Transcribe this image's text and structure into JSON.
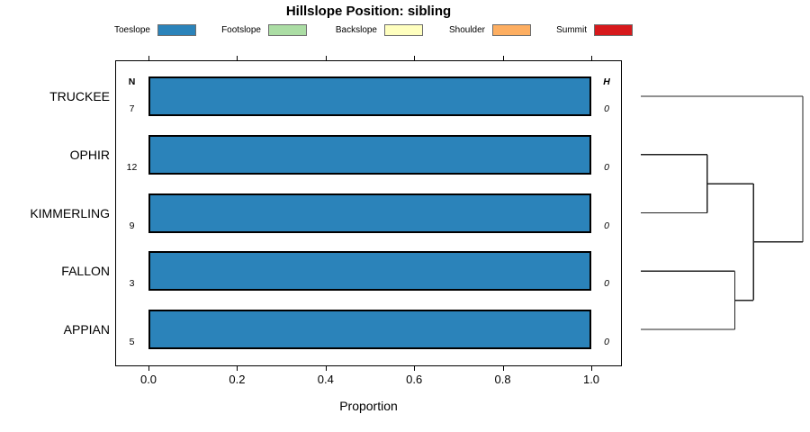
{
  "title": "Hillslope Position: sibling",
  "legend": {
    "items": [
      {
        "label": "Toeslope",
        "color": "#2B83BA"
      },
      {
        "label": "Footslope",
        "color": "#ABDDA4"
      },
      {
        "label": "Backslope",
        "color": "#FFFFBF"
      },
      {
        "label": "Shoulder",
        "color": "#FDAE61"
      },
      {
        "label": "Summit",
        "color": "#D7191C"
      }
    ]
  },
  "chart_data": {
    "type": "bar",
    "orientation": "horizontal",
    "title": "Hillslope Position: sibling",
    "xlabel": "Proportion",
    "xlim": [
      0,
      1
    ],
    "xticks": [
      "0.0",
      "0.2",
      "0.4",
      "0.6",
      "0.8",
      "1.0"
    ],
    "categories": [
      "TRUCKEE",
      "OPHIR",
      "KIMMERLING",
      "FALLON",
      "APPIAN"
    ],
    "series": [
      {
        "name": "Toeslope",
        "color": "#2B83BA",
        "values": [
          1.0,
          1.0,
          1.0,
          1.0,
          1.0
        ]
      }
    ],
    "n_header": "N",
    "n_values": [
      7,
      12,
      9,
      3,
      5
    ],
    "h_header": "H",
    "h_values": [
      0,
      0,
      0,
      0,
      0
    ],
    "legend_position": "top",
    "grid": false,
    "bar_border_color": "#000000"
  },
  "dendrogram": {
    "tree": {
      "height": 1.0,
      "children": [
        {
          "leaf": "TRUCKEE"
        },
        {
          "height": 0.695,
          "children": [
            {
              "height": 0.41,
              "children": [
                {
                  "leaf": "OPHIR"
                },
                {
                  "leaf": "KIMMERLING"
                }
              ]
            },
            {
              "height": 0.58,
              "children": [
                {
                  "leaf": "FALLON"
                },
                {
                  "leaf": "APPIAN"
                }
              ]
            }
          ]
        }
      ]
    }
  }
}
